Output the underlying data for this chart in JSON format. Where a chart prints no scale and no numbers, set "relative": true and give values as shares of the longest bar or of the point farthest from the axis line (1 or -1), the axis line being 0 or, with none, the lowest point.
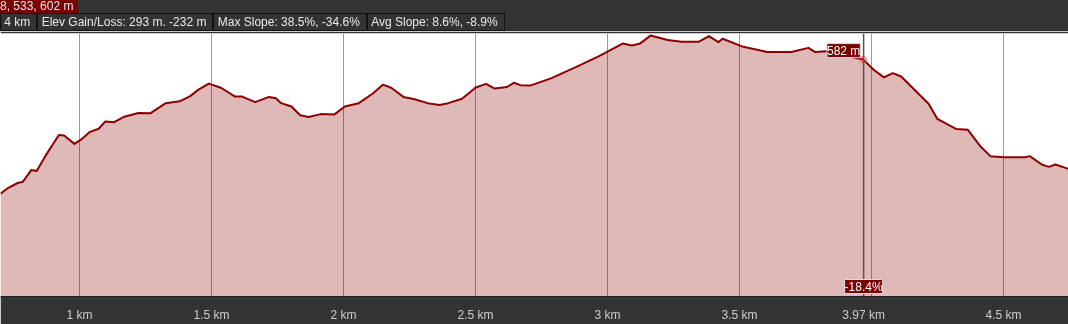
{
  "chart_data": {
    "type": "area",
    "relative": true,
    "annotations": [
      "8, 533, 602 m",
      "4 km",
      "Elev Gain/Loss: 293 m. -232 m",
      "Max Slope: 38.5%, -34.6%",
      "Avg Slope: 8.6%, -8.9%",
      {
        "text": "582 m",
        "x": 3.969,
        "y": 0.908
      },
      {
        "text": "-18.4%",
        "x": 3.97,
        "y": 0
      }
    ],
    "ref_lines": [
      {
        "axis": "x",
        "value": 3.97,
        "label": "3.97 km",
        "color": "#555555"
      }
    ],
    "xlim": [
      0.701,
      4.746
    ],
    "xticks": [
      {
        "value": 1,
        "label": "1 km"
      },
      {
        "value": 1.5,
        "label": "1.5 km"
      },
      {
        "value": 2,
        "label": "2 km"
      },
      {
        "value": 2.5,
        "label": "2.5 km"
      },
      {
        "value": 3,
        "label": "3 km"
      },
      {
        "value": 3.5,
        "label": "3.5 km"
      },
      {
        "value": 4,
        "label": null
      },
      {
        "value": 4.5,
        "label": "4.5 km"
      }
    ],
    "grid": "x",
    "series": [
      {
        "color": "#8b0000",
        "x": [
          0.701,
          0.727,
          0.766,
          0.786,
          0.818,
          0.838,
          0.87,
          0.922,
          0.942,
          0.981,
          1.007,
          1.04,
          1.073,
          1.098,
          1.131,
          1.17,
          1.223,
          1.268,
          1.327,
          1.379,
          1.418,
          1.451,
          1.49,
          1.536,
          1.588,
          1.614,
          1.666,
          1.718,
          1.744,
          1.764,
          1.803,
          1.836,
          1.868,
          1.914,
          1.966,
          2.005,
          2.058,
          2.11,
          2.149,
          2.181,
          2.227,
          2.266,
          2.319,
          2.364,
          2.397,
          2.449,
          2.501,
          2.54,
          2.573,
          2.619,
          2.645,
          2.67,
          2.71,
          2.786,
          2.89,
          2.968,
          3.059,
          3.092,
          3.124,
          3.163,
          3.228,
          3.28,
          3.345,
          3.384,
          3.42,
          3.436,
          3.514,
          3.605,
          3.696,
          3.761,
          3.787,
          3.826,
          3.969,
          4.008,
          4.047,
          4.08,
          4.112,
          4.216,
          4.249,
          4.32,
          4.365,
          4.411,
          4.45,
          4.502,
          4.58,
          4.599,
          4.645,
          4.671,
          4.697,
          4.746
        ],
        "values": [
          0.394,
          0.414,
          0.435,
          0.44,
          0.485,
          0.481,
          0.537,
          0.619,
          0.617,
          0.585,
          0.602,
          0.631,
          0.643,
          0.671,
          0.668,
          0.689,
          0.703,
          0.702,
          0.741,
          0.748,
          0.767,
          0.793,
          0.816,
          0.8,
          0.767,
          0.767,
          0.745,
          0.765,
          0.76,
          0.741,
          0.728,
          0.695,
          0.688,
          0.699,
          0.698,
          0.728,
          0.741,
          0.777,
          0.812,
          0.8,
          0.765,
          0.757,
          0.741,
          0.734,
          0.741,
          0.758,
          0.801,
          0.815,
          0.797,
          0.803,
          0.819,
          0.81,
          0.809,
          0.836,
          0.884,
          0.921,
          0.97,
          0.962,
          0.97,
          1.0,
          0.983,
          0.976,
          0.976,
          0.998,
          0.975,
          0.988,
          0.957,
          0.937,
          0.937,
          0.953,
          0.937,
          0.94,
          0.908,
          0.869,
          0.84,
          0.856,
          0.843,
          0.739,
          0.681,
          0.642,
          0.639,
          0.577,
          0.538,
          0.534,
          0.534,
          0.538,
          0.506,
          0.497,
          0.506,
          0.489
        ]
      }
    ]
  }
}
